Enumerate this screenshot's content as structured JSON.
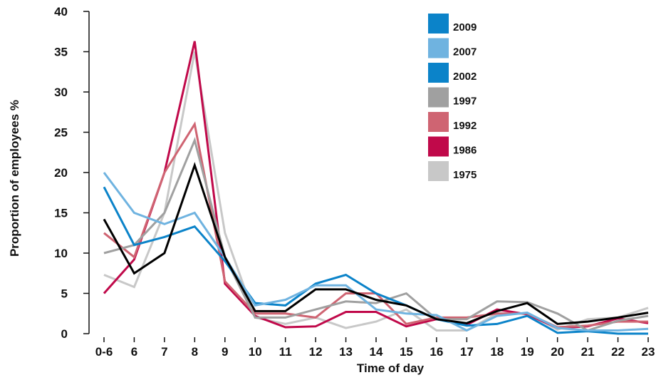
{
  "chart_data": {
    "type": "line",
    "title": "",
    "xlabel": "Time of day",
    "ylabel": "Proportion of employees %",
    "ylim": [
      0,
      40
    ],
    "yticks": [
      0,
      5,
      10,
      15,
      20,
      25,
      30,
      35,
      40
    ],
    "categories": [
      "0-6",
      "6",
      "7",
      "8",
      "9",
      "10",
      "11",
      "12",
      "13",
      "14",
      "15",
      "16",
      "17",
      "18",
      "19",
      "20",
      "21",
      "22",
      "23"
    ],
    "legend_position": "top-right",
    "grid": false,
    "series": [
      {
        "name": "2009",
        "color": "#000000",
        "in_legend": false,
        "line_width": 3,
        "values": [
          14.2,
          7.5,
          10,
          20.9,
          9.5,
          2.8,
          2.8,
          5.5,
          5.5,
          4.2,
          3.5,
          1.8,
          1.3,
          2.8,
          3.8,
          1.2,
          1.5,
          2.0,
          2.6
        ]
      },
      {
        "name": "2009",
        "color": "#0b83c9",
        "in_legend": true,
        "line_width": 3,
        "values": [
          null,
          null,
          null,
          null,
          null,
          null,
          null,
          null,
          null,
          null,
          null,
          null,
          null,
          null,
          null,
          null,
          null,
          null,
          null
        ]
      },
      {
        "name": "2007",
        "color": "#6fb3e0",
        "in_legend": true,
        "line_width": 3,
        "values": [
          20,
          15,
          13.6,
          15,
          9.5,
          3.5,
          4.2,
          6,
          6,
          3,
          2.5,
          2.3,
          0.4,
          2.2,
          2.6,
          0.7,
          0.4,
          0.4,
          0.6
        ]
      },
      {
        "name": "2002",
        "color": "#0b83c9",
        "in_legend": true,
        "line_width": 3,
        "values": [
          18.2,
          11,
          12,
          13.3,
          9,
          3.8,
          3.5,
          6.2,
          7.3,
          5,
          3.5,
          1.8,
          1.0,
          1.2,
          2.2,
          0.1,
          0.3,
          0.0,
          0.0
        ]
      },
      {
        "name": "1997",
        "color": "#a0a0a0",
        "in_legend": true,
        "line_width": 3,
        "values": [
          10,
          11,
          15,
          24,
          9.5,
          2.0,
          2.0,
          3.0,
          4.0,
          3.8,
          5.0,
          1.8,
          1.8,
          4.0,
          3.9,
          2.5,
          0.4,
          1.6,
          2.2
        ]
      },
      {
        "name": "1992",
        "color": "#cf6472",
        "in_legend": true,
        "line_width": 3,
        "values": [
          12.5,
          9.5,
          20,
          26,
          6.5,
          2.5,
          2.5,
          2.0,
          5.0,
          5.0,
          1.2,
          2.0,
          2.0,
          2.5,
          2.5,
          0.8,
          1.0,
          1.5,
          1.5
        ]
      },
      {
        "name": "1986",
        "color": "#c0094a",
        "in_legend": true,
        "line_width": 3,
        "values": [
          5.0,
          9.2,
          20,
          36.3,
          6.2,
          2.2,
          0.8,
          0.9,
          2.7,
          2.7,
          0.9,
          1.8,
          1.1,
          3.0,
          2.4,
          0.7,
          0.9,
          1.9,
          1.3
        ]
      },
      {
        "name": "1975",
        "color": "#c8c8c8",
        "in_legend": true,
        "line_width": 3,
        "values": [
          7.3,
          5.8,
          15,
          35,
          12.5,
          2.0,
          1.2,
          2.0,
          0.7,
          1.5,
          3.0,
          0.4,
          0.4,
          2.5,
          2.5,
          0.5,
          1.8,
          2.0,
          3.2
        ]
      }
    ]
  }
}
